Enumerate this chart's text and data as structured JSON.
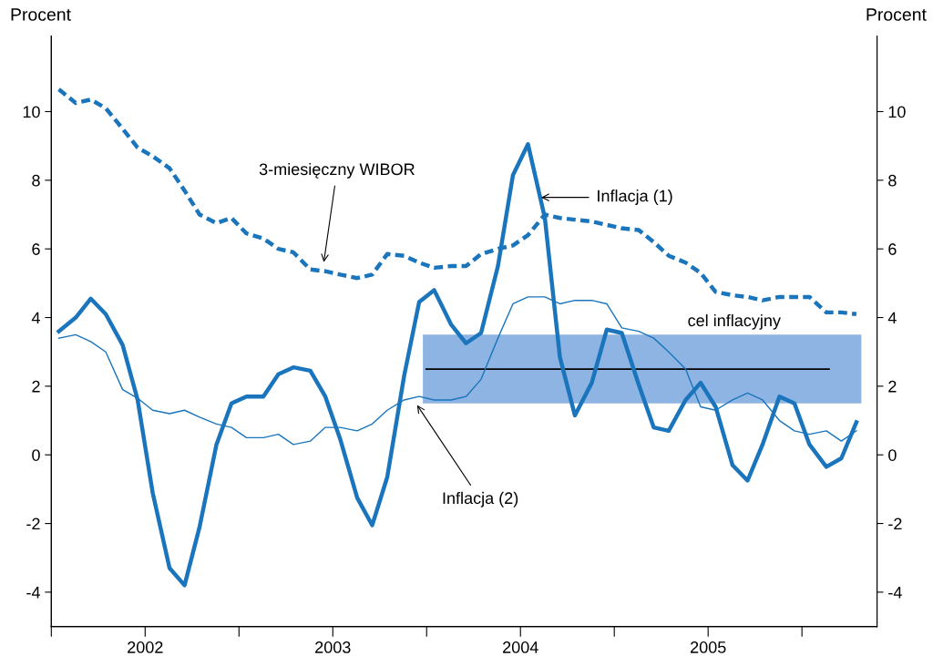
{
  "chart_data": {
    "type": "line",
    "ylabel": "Procent",
    "y2label": "Procent",
    "x": [
      2002.04,
      2002.13,
      2002.21,
      2002.29,
      2002.38,
      2002.46,
      2002.54,
      2002.63,
      2002.71,
      2002.79,
      2002.88,
      2002.96,
      2003.04,
      2003.13,
      2003.21,
      2003.29,
      2003.38,
      2003.46,
      2003.54,
      2003.63,
      2003.71,
      2003.79,
      2003.88,
      2003.96,
      2004.04,
      2004.13,
      2004.21,
      2004.29,
      2004.38,
      2004.46,
      2004.54,
      2004.63,
      2004.71,
      2004.79,
      2004.88,
      2004.96,
      2005.04,
      2005.13,
      2005.21,
      2005.29,
      2005.38,
      2005.46,
      2005.54,
      2005.63,
      2005.71,
      2005.79,
      2005.88,
      2005.96,
      2006.04,
      2006.13,
      2006.21,
      2006.29
    ],
    "series": [
      {
        "color": "#1a75bc",
        "line_style": "dashed",
        "values": [
          10.65,
          10.25,
          10.35,
          10.1,
          9.5,
          8.95,
          8.7,
          8.35,
          7.7,
          7.0,
          6.75,
          6.9,
          6.45,
          6.3,
          6.0,
          5.9,
          5.4,
          5.35,
          5.25,
          5.15,
          5.25,
          5.85,
          5.8,
          5.6,
          5.45,
          5.5,
          5.5,
          5.85,
          6.0,
          6.1,
          6.4,
          7.0,
          6.9,
          6.85,
          6.8,
          6.7,
          6.6,
          6.55,
          6.2,
          5.8,
          5.6,
          5.3,
          4.75,
          4.65,
          4.6,
          4.5,
          4.6,
          4.6,
          4.6,
          4.15,
          4.15,
          4.1
        ]
      },
      {
        "color": "#1a75bc",
        "values": [
          3.4,
          3.5,
          3.3,
          3.0,
          1.9,
          1.65,
          1.3,
          1.2,
          1.3,
          1.1,
          0.9,
          0.8,
          0.5,
          0.5,
          0.6,
          0.3,
          0.4,
          0.8,
          0.8,
          0.7,
          0.9,
          1.3,
          1.6,
          1.7,
          1.6,
          1.6,
          1.7,
          2.2,
          3.4,
          4.4,
          4.6,
          4.6,
          4.4,
          4.5,
          4.5,
          4.4,
          3.7,
          3.6,
          3.4,
          3.0,
          2.5,
          1.4,
          1.3,
          1.6,
          1.8,
          1.6,
          1.0,
          0.7,
          0.6,
          0.7,
          0.4,
          0.7
        ]
      },
      {
        "color": "#1a75bc",
        "values": [
          3.6,
          4.0,
          4.55,
          4.1,
          3.2,
          1.6,
          -1.1,
          -3.3,
          -3.8,
          -2.1,
          0.3,
          1.5,
          1.7,
          1.7,
          2.35,
          2.55,
          2.45,
          1.7,
          0.45,
          -1.25,
          -2.05,
          -0.65,
          2.3,
          4.45,
          4.8,
          3.8,
          3.25,
          3.55,
          5.5,
          8.15,
          9.05,
          6.9,
          2.85,
          1.15,
          2.1,
          3.65,
          3.55,
          2.05,
          0.8,
          0.7,
          1.6,
          2.1,
          1.4,
          -0.3,
          -0.75,
          0.3,
          1.7,
          1.5,
          0.3,
          -0.35,
          -0.1,
          0.95
        ]
      }
    ],
    "annotations": [
      "3-miesięczny WIBOR",
      {
        "text": "Inflacja (1)",
        "x": 2004.61,
        "y": 7.5
      },
      "Inflacja (2)"
    ],
    "bands": [
      {
        "axis": "y",
        "from": 1.5,
        "to": 3.5,
        "label": "cel inflacyjny",
        "color": "#8db4e2"
      }
    ],
    "ref_lines": [
      {
        "axis": "y",
        "value": 2.5,
        "color": "#000000"
      }
    ],
    "xlim": [
      2002.0,
      2006.4
    ],
    "ylim": [
      -5,
      12.2
    ],
    "y2lim": [
      -5,
      12.2
    ],
    "xticks": [
      {
        "value": 2002.0,
        "label": null
      },
      {
        "value": 2002.5,
        "label": "2002"
      },
      {
        "value": 2003.0,
        "label": null
      },
      {
        "value": 2003.5,
        "label": "2003"
      },
      {
        "value": 2004.0,
        "label": null
      },
      {
        "value": 2004.5,
        "label": "2004"
      },
      {
        "value": 2005.0,
        "label": null
      },
      {
        "value": 2005.5,
        "label": "2005"
      },
      {
        "value": 2006.0,
        "label": null
      }
    ],
    "yticks": [
      -4,
      -2,
      0,
      2,
      4,
      6,
      8,
      10
    ],
    "y2ticks": [
      -4,
      -2,
      0,
      2,
      4,
      6,
      8,
      10
    ],
    "grid": false,
    "legend": false
  }
}
